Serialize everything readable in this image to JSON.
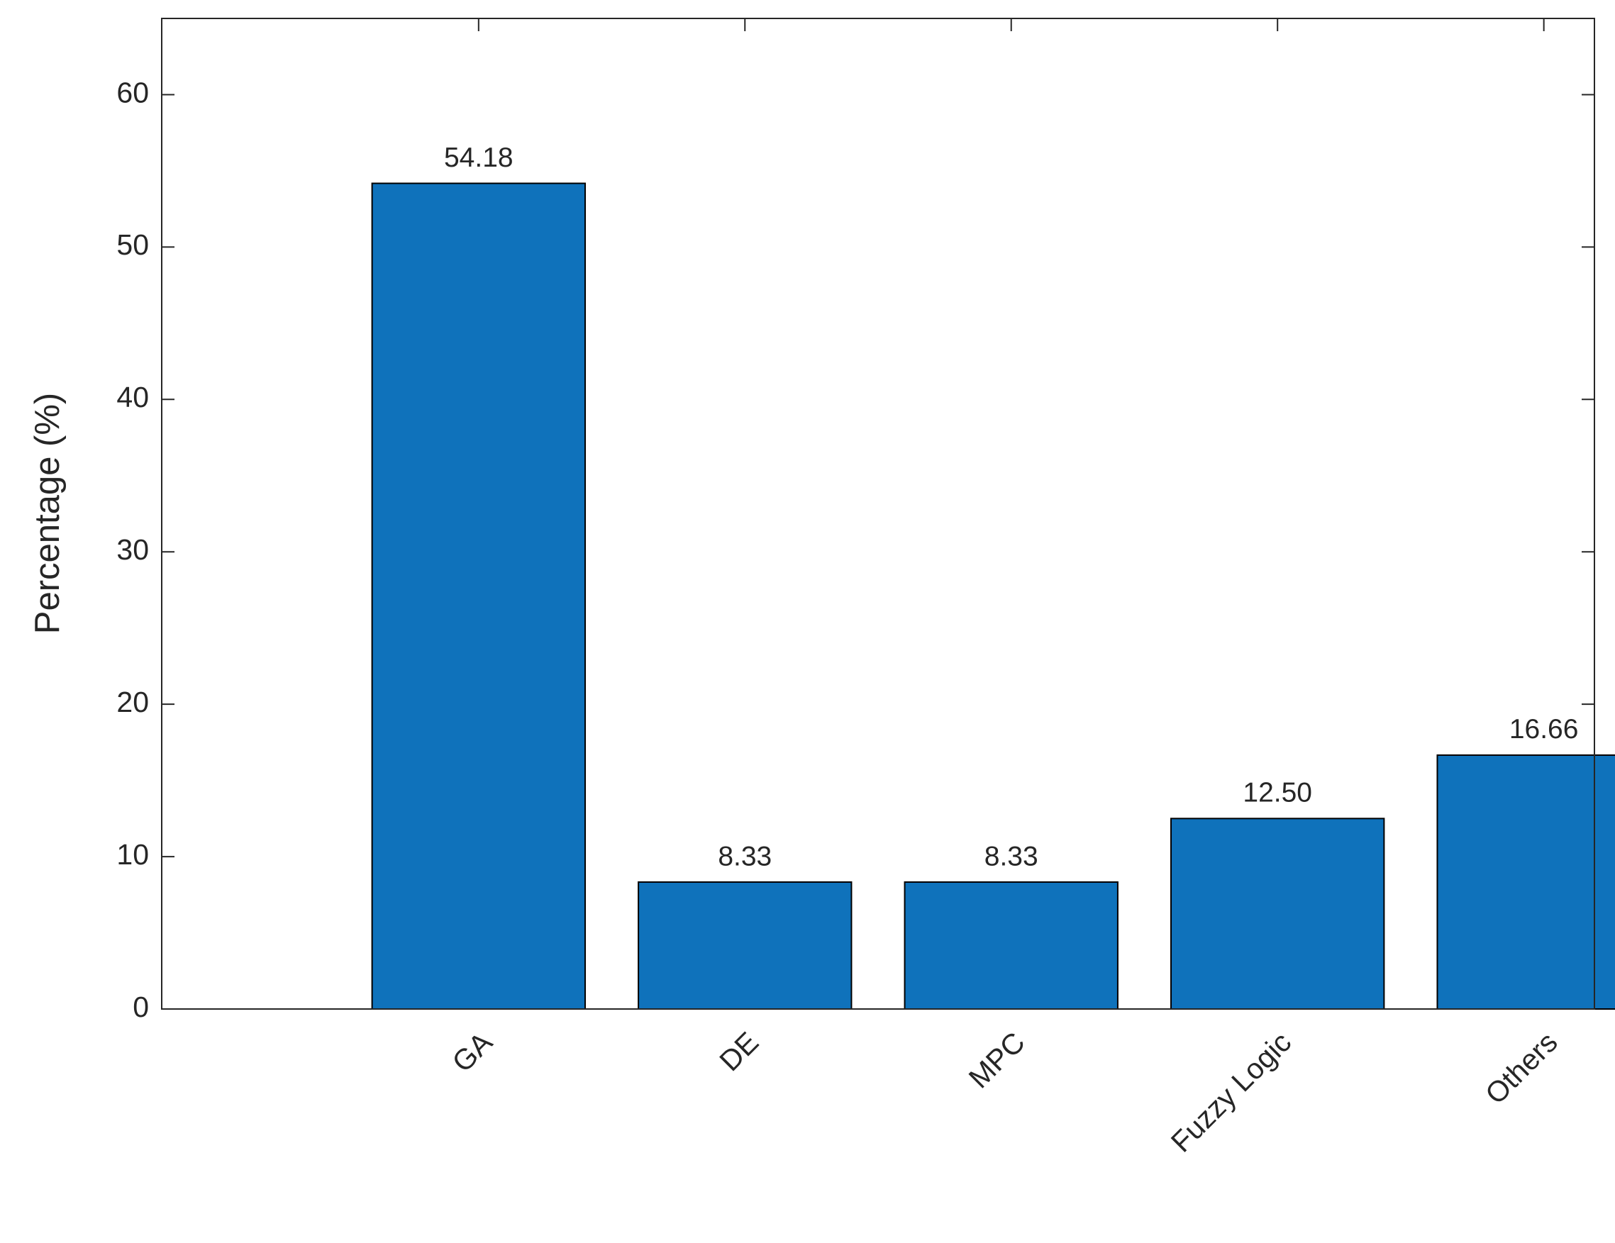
{
  "chart_data": {
    "type": "bar",
    "y_label": "Percentage (%)",
    "categories": [
      "GA",
      "DE",
      "MPC",
      "Fuzzy Logic",
      "Others"
    ],
    "values": [
      54.18,
      8.33,
      8.33,
      12.5,
      16.66
    ],
    "value_labels": [
      "54.18",
      "8.33",
      "8.33",
      "12.50",
      "16.66"
    ],
    "color": "#0f72bb",
    "ylim": [
      0,
      65
    ],
    "yticks": [
      0,
      10,
      20,
      30,
      40,
      50,
      60
    ]
  }
}
